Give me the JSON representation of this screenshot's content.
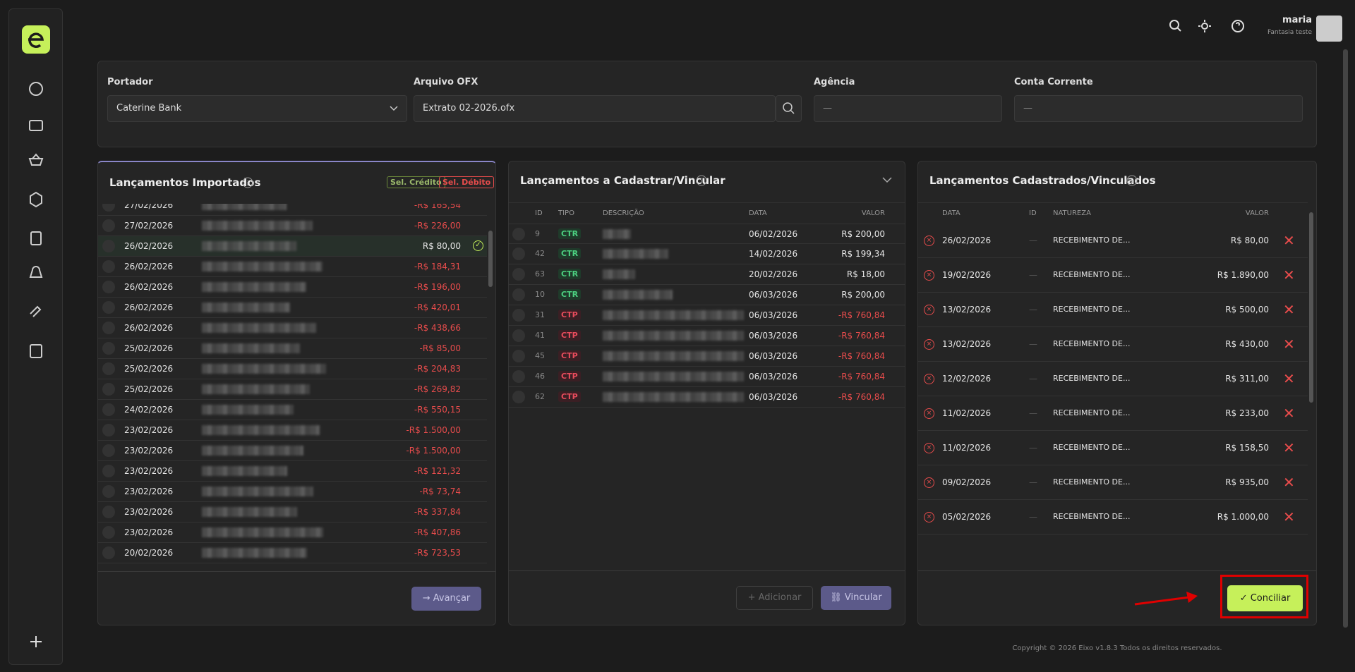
{
  "user": {
    "name": "maria",
    "company": "Fantasia teste"
  },
  "filters": [
    {
      "label": "Portador",
      "value": "Caterine Bank"
    },
    {
      "label": "Arquivo OFX",
      "value": "Extrato 02-2026.ofx"
    },
    {
      "label": "Agência",
      "value": "—"
    },
    {
      "label": "Conta Corrente",
      "value": "—"
    }
  ],
  "imported": {
    "title": "Lançamentos Importados",
    "badges": [
      "Sel. Crédito",
      "Sel. Débito"
    ],
    "selected_row": 2,
    "rows": [
      {
        "date": "27/02/2026",
        "amount": "-R$ 165,54"
      },
      {
        "date": "27/02/2026",
        "amount": "-R$ 226,00"
      },
      {
        "date": "26/02/2026",
        "amount": "R$ 80,00"
      },
      {
        "date": "26/02/2026",
        "amount": "-R$ 184,31"
      },
      {
        "date": "26/02/2026",
        "amount": "-R$ 196,00"
      },
      {
        "date": "26/02/2026",
        "amount": "-R$ 420,01"
      },
      {
        "date": "26/02/2026",
        "amount": "-R$ 438,66"
      },
      {
        "date": "25/02/2026",
        "amount": "-R$ 85,00"
      },
      {
        "date": "25/02/2026",
        "amount": "-R$ 204,83"
      },
      {
        "date": "25/02/2026",
        "amount": "-R$ 269,82"
      },
      {
        "date": "24/02/2026",
        "amount": "-R$ 550,15"
      },
      {
        "date": "23/02/2026",
        "amount": "-R$ 1.500,00"
      },
      {
        "date": "23/02/2026",
        "amount": "-R$ 1.500,00"
      },
      {
        "date": "23/02/2026",
        "amount": "-R$ 121,32"
      },
      {
        "date": "23/02/2026",
        "amount": "-R$ 73,74"
      },
      {
        "date": "23/02/2026",
        "amount": "-R$ 337,84"
      },
      {
        "date": "23/02/2026",
        "amount": "-R$ 407,86"
      },
      {
        "date": "20/02/2026",
        "amount": "-R$ 723,53"
      }
    ],
    "button": "Avançar"
  },
  "pending": {
    "title": "Lançamentos a Cadastrar/Vincular",
    "columns": [
      "ID",
      "TIPO",
      "DESCRIÇÃO",
      "DATA",
      "VALOR"
    ],
    "rows": [
      {
        "id": "9",
        "type": "CTR",
        "date": "06/02/2026",
        "amount": "R$ 200,00"
      },
      {
        "id": "42",
        "type": "CTR",
        "date": "14/02/2026",
        "amount": "R$ 199,34"
      },
      {
        "id": "63",
        "type": "CTR",
        "date": "20/02/2026",
        "amount": "R$ 18,00"
      },
      {
        "id": "10",
        "type": "CTR",
        "date": "06/03/2026",
        "amount": "R$ 200,00"
      },
      {
        "id": "31",
        "type": "CTP",
        "date": "06/03/2026",
        "amount": "-R$ 760,84"
      },
      {
        "id": "41",
        "type": "CTP",
        "date": "06/03/2026",
        "amount": "-R$ 760,84"
      },
      {
        "id": "45",
        "type": "CTP",
        "date": "06/03/2026",
        "amount": "-R$ 760,84"
      },
      {
        "id": "46",
        "type": "CTP",
        "date": "06/03/2026",
        "amount": "-R$ 760,84"
      },
      {
        "id": "62",
        "type": "CTP",
        "date": "06/03/2026",
        "amount": "-R$ 760,84"
      }
    ],
    "buttons": [
      "Adicionar",
      "Vincular"
    ]
  },
  "linked": {
    "title": "Lançamentos Cadastrados/Vinculados",
    "columns": [
      "DATA",
      "ID",
      "NATUREZA",
      "VALOR"
    ],
    "rows": [
      {
        "date": "26/02/2026",
        "id": "—",
        "nature": "RECEBIMENTO DE...",
        "amount": "R$ 80,00"
      },
      {
        "date": "19/02/2026",
        "id": "—",
        "nature": "RECEBIMENTO DE...",
        "amount": "R$ 1.890,00"
      },
      {
        "date": "13/02/2026",
        "id": "—",
        "nature": "RECEBIMENTO DE...",
        "amount": "R$ 500,00"
      },
      {
        "date": "13/02/2026",
        "id": "—",
        "nature": "RECEBIMENTO DE...",
        "amount": "R$ 430,00"
      },
      {
        "date": "12/02/2026",
        "id": "—",
        "nature": "RECEBIMENTO DE...",
        "amount": "R$ 311,00"
      },
      {
        "date": "11/02/2026",
        "id": "—",
        "nature": "RECEBIMENTO DE...",
        "amount": "R$ 233,00"
      },
      {
        "date": "11/02/2026",
        "id": "—",
        "nature": "RECEBIMENTO DE...",
        "amount": "R$ 158,50"
      },
      {
        "date": "09/02/2026",
        "id": "—",
        "nature": "RECEBIMENTO DE...",
        "amount": "R$ 935,00"
      },
      {
        "date": "05/02/2026",
        "id": "—",
        "nature": "RECEBIMENTO DE...",
        "amount": "R$ 1.000,00"
      }
    ],
    "button": "Conciliar"
  },
  "footer": "Copyright © 2026 Eixo v1.8.3 Todos os direitos reservados."
}
